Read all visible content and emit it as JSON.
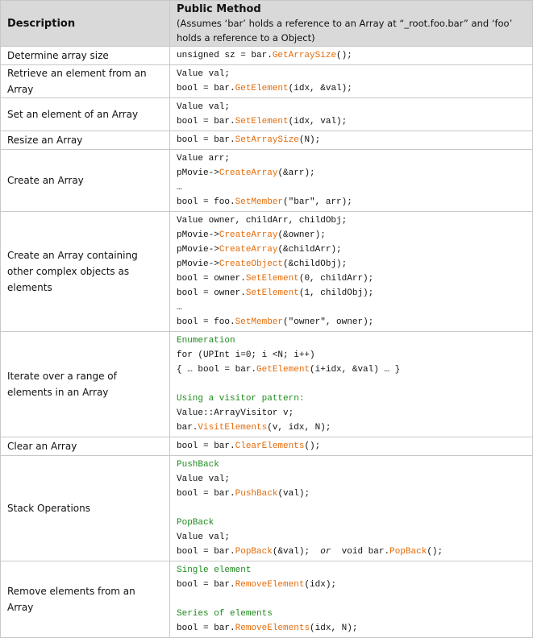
{
  "header": {
    "description": "Description",
    "method_title": "Public Method",
    "method_note": "(Assumes ‘bar’ holds a reference to an Array  at “_root.foo.bar” and ‘foo’ holds a reference to a Object)"
  },
  "colors": {
    "method": "#e46c0a",
    "comment": "#1e8b1e",
    "header_bg": "#d9d9d9"
  },
  "rows": [
    {
      "description": "Determine array size",
      "lines": [
        [
          [
            "unsigned sz = bar.",
            "n"
          ],
          [
            "GetArraySize",
            "m"
          ],
          [
            "();",
            "n"
          ]
        ]
      ]
    },
    {
      "description": "Retrieve an element from an Array",
      "lines": [
        [
          [
            "Value val;",
            "n"
          ]
        ],
        [
          [
            "bool = bar.",
            "n"
          ],
          [
            "GetElement",
            "m"
          ],
          [
            "(idx, &val);",
            "n"
          ]
        ]
      ]
    },
    {
      "description": "Set an element of an Array",
      "lines": [
        [
          [
            "Value val;",
            "n"
          ]
        ],
        [
          [
            "bool = bar.",
            "n"
          ],
          [
            "SetElement",
            "m"
          ],
          [
            "(idx, val);",
            "n"
          ]
        ]
      ]
    },
    {
      "description": "Resize an Array",
      "lines": [
        [
          [
            "bool = bar.",
            "n"
          ],
          [
            "SetArraySize",
            "m"
          ],
          [
            "(N);",
            "n"
          ]
        ]
      ]
    },
    {
      "description": "Create an Array",
      "lines": [
        [
          [
            "Value arr;",
            "n"
          ]
        ],
        [
          [
            "pMovie->",
            "n"
          ],
          [
            "CreateArray",
            "m"
          ],
          [
            "(&arr);",
            "n"
          ]
        ],
        [
          [
            "…",
            "n"
          ]
        ],
        [
          [
            "bool = foo.",
            "n"
          ],
          [
            "SetMember",
            "m"
          ],
          [
            "(\"bar\", arr);",
            "n"
          ]
        ]
      ]
    },
    {
      "description": "Create an Array containing other complex objects as elements",
      "lines": [
        [
          [
            "Value owner, childArr, childObj;",
            "n"
          ]
        ],
        [
          [
            "pMovie->",
            "n"
          ],
          [
            "CreateArray",
            "m"
          ],
          [
            "(&owner);",
            "n"
          ]
        ],
        [
          [
            "pMovie->",
            "n"
          ],
          [
            "CreateArray",
            "m"
          ],
          [
            "(&childArr);",
            "n"
          ]
        ],
        [
          [
            "pMovie->",
            "n"
          ],
          [
            "CreateObject",
            "m"
          ],
          [
            "(&childObj);",
            "n"
          ]
        ],
        [
          [
            "bool = owner.",
            "n"
          ],
          [
            "SetElement",
            "m"
          ],
          [
            "(0, childArr);",
            "n"
          ]
        ],
        [
          [
            "bool = owner.",
            "n"
          ],
          [
            "SetElement",
            "m"
          ],
          [
            "(1, childObj);",
            "n"
          ]
        ],
        [
          [
            "…",
            "n"
          ]
        ],
        [
          [
            "bool = foo.",
            "n"
          ],
          [
            "SetMember",
            "m"
          ],
          [
            "(\"owner\", owner);",
            "n"
          ]
        ]
      ]
    },
    {
      "description": "Iterate over a range of elements in an Array",
      "lines": [
        [
          [
            "Enumeration",
            "cm"
          ]
        ],
        [
          [
            "for (UPInt i=0; i <N; i++)",
            "n"
          ]
        ],
        [
          [
            "{ … bool = bar.",
            "n"
          ],
          [
            "GetElement",
            "m"
          ],
          [
            "(i+idx, &val) … }",
            "n"
          ]
        ],
        [
          [
            "",
            "n"
          ]
        ],
        [
          [
            "Using a visitor pattern:",
            "cm"
          ]
        ],
        [
          [
            "Value::ArrayVisitor v;",
            "n"
          ]
        ],
        [
          [
            "bar.",
            "n"
          ],
          [
            "VisitElements",
            "m"
          ],
          [
            "(v, idx, N);",
            "n"
          ]
        ]
      ]
    },
    {
      "description": "Clear an Array",
      "lines": [
        [
          [
            "bool = bar.",
            "n"
          ],
          [
            "ClearElements",
            "m"
          ],
          [
            "();",
            "n"
          ]
        ]
      ]
    },
    {
      "description": "Stack Operations",
      "lines": [
        [
          [
            "PushBack",
            "cm"
          ]
        ],
        [
          [
            "Value val;",
            "n"
          ]
        ],
        [
          [
            "bool = bar.",
            "n"
          ],
          [
            "PushBack",
            "m"
          ],
          [
            "(val);",
            "n"
          ]
        ],
        [
          [
            "",
            "n"
          ]
        ],
        [
          [
            "PopBack",
            "cm"
          ]
        ],
        [
          [
            "Value val;",
            "n"
          ]
        ],
        [
          [
            "bool = bar.",
            "n"
          ],
          [
            "PopBack",
            "m"
          ],
          [
            "(&val);  ",
            "n"
          ],
          [
            "or",
            "it"
          ],
          [
            "  void bar.",
            "n"
          ],
          [
            "PopBack",
            "m"
          ],
          [
            "();",
            "n"
          ]
        ]
      ]
    },
    {
      "description": "Remove elements from an Array",
      "lines": [
        [
          [
            "Single element",
            "cm"
          ]
        ],
        [
          [
            "bool = bar.",
            "n"
          ],
          [
            "RemoveElement",
            "m"
          ],
          [
            "(idx);",
            "n"
          ]
        ],
        [
          [
            "",
            "n"
          ]
        ],
        [
          [
            "Series of elements",
            "cm"
          ]
        ],
        [
          [
            "bool = bar.",
            "n"
          ],
          [
            "RemoveElements",
            "m"
          ],
          [
            "(idx, N);",
            "n"
          ]
        ]
      ]
    }
  ]
}
